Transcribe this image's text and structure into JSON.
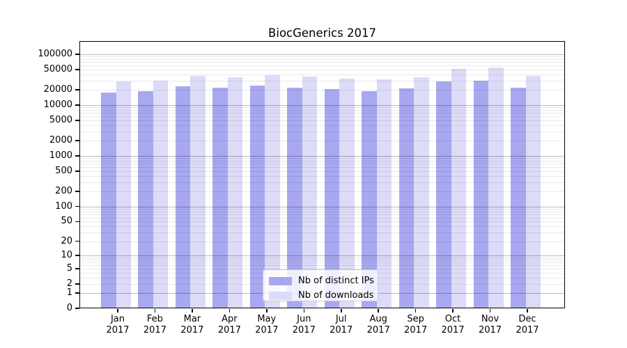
{
  "chart_data": {
    "type": "bar",
    "title": "BiocGenerics 2017",
    "categories": [
      "Jan 2017",
      "Feb 2017",
      "Mar 2017",
      "Apr 2017",
      "May 2017",
      "Jun 2017",
      "Jul 2017",
      "Aug 2017",
      "Sep 2017",
      "Oct 2017",
      "Nov 2017",
      "Dec 2017"
    ],
    "x_tick_month": [
      "Jan",
      "Feb",
      "Mar",
      "Apr",
      "May",
      "Jun",
      "Jul",
      "Aug",
      "Sep",
      "Oct",
      "Nov",
      "Dec"
    ],
    "x_tick_year": "2017",
    "series": [
      {
        "name": "Nb of distinct IPs",
        "color": "#a8a8f0",
        "values": [
          17500,
          19000,
          23200,
          22200,
          24200,
          21800,
          20700,
          18800,
          21100,
          29200,
          30200,
          22200
        ]
      },
      {
        "name": "Nb of downloads",
        "color": "#dcdcf8",
        "values": [
          29000,
          30500,
          37600,
          35700,
          39000,
          36400,
          33200,
          31800,
          35000,
          51100,
          54400,
          37600
        ]
      }
    ],
    "y_axis": {
      "ticks": [
        0,
        1,
        2,
        5,
        10,
        20,
        50,
        100,
        200,
        500,
        1000,
        2000,
        5000,
        10000,
        20000,
        50000,
        100000
      ],
      "scale": "log10(value+1)",
      "ylim_top_value": 179000
    },
    "grid": {
      "horizontal": true,
      "minor_log_gridlines": true,
      "vertical": false
    },
    "legend": {
      "position": "inside-bottom-center",
      "items": [
        "Nb of distinct IPs",
        "Nb of downloads"
      ]
    }
  },
  "colors": {
    "bar_distinct_ips": "#a8a8f0",
    "bar_downloads": "#dcdcf8",
    "grid_major": "#bababa",
    "grid_minor": "#e9e9e9",
    "axis": "#000000",
    "background": "#ffffff"
  }
}
